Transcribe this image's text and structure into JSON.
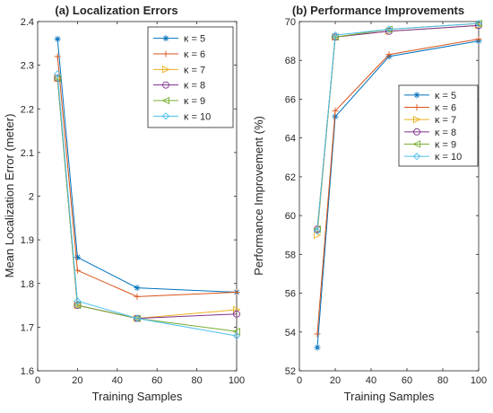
{
  "chart_data": [
    {
      "type": "line",
      "title": "(a) Localization Errors",
      "xlabel": "Training Samples",
      "ylabel": "Mean Localization Error (meter)",
      "xlim": [
        0,
        100
      ],
      "ylim": [
        1.6,
        2.4
      ],
      "xticks": [
        0,
        20,
        40,
        60,
        80,
        100
      ],
      "yticks": [
        1.6,
        1.7,
        1.8,
        1.9,
        2.0,
        2.1,
        2.2,
        2.3,
        2.4
      ],
      "ytick_labels": [
        "1.6",
        "1.7",
        "1.8",
        "1.9",
        "2",
        "2.1",
        "2.2",
        "2.3",
        "2.4"
      ],
      "x": [
        10,
        20,
        50,
        100
      ],
      "legend_position": "top-right",
      "series": [
        {
          "name": "κ = 5",
          "values": [
            2.36,
            1.86,
            1.79,
            1.78
          ]
        },
        {
          "name": "κ = 6",
          "values": [
            2.32,
            1.83,
            1.77,
            1.78
          ]
        },
        {
          "name": "κ = 7",
          "values": [
            2.27,
            1.75,
            1.72,
            1.74
          ]
        },
        {
          "name": "κ = 8",
          "values": [
            2.27,
            1.75,
            1.72,
            1.73
          ]
        },
        {
          "name": "κ = 9",
          "values": [
            2.27,
            1.75,
            1.72,
            1.69
          ]
        },
        {
          "name": "κ = 10",
          "values": [
            2.28,
            1.76,
            1.72,
            1.68
          ]
        }
      ]
    },
    {
      "type": "line",
      "title": "(b) Performance Improvements",
      "xlabel": "Training Samples",
      "ylabel": "Performance Improvement (%)",
      "xlim": [
        0,
        100
      ],
      "ylim": [
        52,
        70
      ],
      "xticks": [
        0,
        20,
        40,
        60,
        80,
        100
      ],
      "yticks": [
        52,
        54,
        56,
        58,
        60,
        62,
        64,
        66,
        68,
        70
      ],
      "ytick_labels": [
        "52",
        "54",
        "56",
        "58",
        "60",
        "62",
        "64",
        "66",
        "68",
        "70"
      ],
      "x": [
        10,
        20,
        50,
        100
      ],
      "legend_position": "right",
      "series": [
        {
          "name": "κ = 5",
          "values": [
            53.2,
            65.1,
            68.2,
            69.0
          ]
        },
        {
          "name": "κ = 6",
          "values": [
            53.9,
            65.4,
            68.3,
            69.1
          ]
        },
        {
          "name": "κ = 7",
          "values": [
            59.0,
            69.2,
            69.5,
            69.8
          ]
        },
        {
          "name": "κ = 8",
          "values": [
            59.3,
            69.2,
            69.5,
            69.8
          ]
        },
        {
          "name": "κ = 9",
          "values": [
            59.3,
            69.2,
            69.6,
            69.9
          ]
        },
        {
          "name": "κ = 10",
          "values": [
            59.2,
            69.3,
            69.6,
            69.9
          ]
        }
      ]
    }
  ],
  "style": {
    "colors": [
      "#0072BD",
      "#D95319",
      "#EDB120",
      "#7E2F8E",
      "#77AC30",
      "#4DBEEE"
    ],
    "markers": [
      "asterisk",
      "plus",
      "triangle-right",
      "circle",
      "triangle-left",
      "diamond"
    ]
  }
}
